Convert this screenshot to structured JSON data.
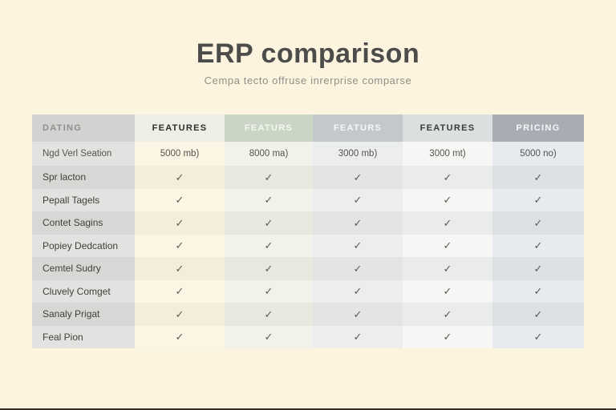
{
  "header": {
    "title": "ERP comparison",
    "subtitle": "Cempa tecto offruse inrerprise comparse"
  },
  "colors": {
    "page_background": "#fcf4df",
    "title_text": "#4c4c4a",
    "subtitle_text": "#8f8f89",
    "checkmark": "#5a5b56",
    "bottom_edge": "#3a2921"
  },
  "table": {
    "check_glyph": "✓",
    "columns": [
      {
        "id": "dating",
        "label": "DATING",
        "header_bg": "#d2d3d0",
        "header_fg": "#8f918e",
        "row_light": "#e2e3e0",
        "row_dark": "#d7d8d5"
      },
      {
        "id": "features-1",
        "label": "FEATURES",
        "header_bg": "#edeee5",
        "header_fg": "#2e2e2c",
        "row_light": "#fbf5e3",
        "row_dark": "#f3edda"
      },
      {
        "id": "features-2",
        "label": "FEATURS",
        "header_bg": "#cbd5c6",
        "header_fg": "#f4f6f0",
        "row_light": "#f1f2ea",
        "row_dark": "#e7e9df"
      },
      {
        "id": "features-3",
        "label": "FEATURS",
        "header_bg": "#c5c8ca",
        "header_fg": "#f5f6f6",
        "row_light": "#eceeee",
        "row_dark": "#e2e4e5"
      },
      {
        "id": "features-4",
        "label": "FEATURES",
        "header_bg": "#dcdfdf",
        "header_fg": "#3a3b3a",
        "row_light": "#f6f7f5",
        "row_dark": "#eaebeb"
      },
      {
        "id": "pricing",
        "label": "PRICING",
        "header_bg": "#a7adb3",
        "header_fg": "#f6f7f8",
        "row_light": "#e7eaee",
        "row_dark": "#dde1e6"
      }
    ],
    "size_row": {
      "label": "Ngd Verl Seation",
      "values": [
        "5000 mb)",
        "8000 ma)",
        "3000 mb)",
        "3000 mt)",
        "5000 no)"
      ]
    },
    "feature_rows": [
      {
        "label": "Spr lacton",
        "checks": [
          true,
          true,
          true,
          true,
          true
        ]
      },
      {
        "label": "Pepall Tagels",
        "checks": [
          true,
          true,
          true,
          true,
          true
        ]
      },
      {
        "label": "Contet Sagins",
        "checks": [
          true,
          true,
          true,
          true,
          true
        ]
      },
      {
        "label": "Popiey Dedcation",
        "checks": [
          true,
          true,
          true,
          true,
          true
        ]
      },
      {
        "label": "Cemtel Sudry",
        "checks": [
          true,
          true,
          true,
          true,
          true
        ]
      },
      {
        "label": "Cluvely Comget",
        "checks": [
          true,
          true,
          true,
          true,
          true
        ]
      },
      {
        "label": "Sanaly Prigat",
        "checks": [
          true,
          true,
          true,
          true,
          true
        ]
      },
      {
        "label": "Feal Pion",
        "checks": [
          true,
          true,
          true,
          true,
          true
        ]
      }
    ]
  }
}
